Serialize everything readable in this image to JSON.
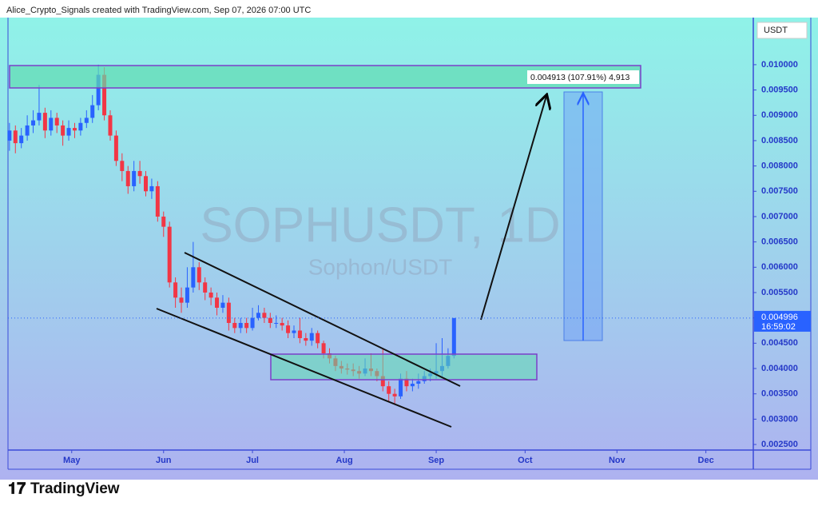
{
  "header": {
    "text": "Alice_Crypto_Signals created with TradingView.com, Sep 07, 2026 07:00 UTC"
  },
  "footer": {
    "logo": "TradingView"
  },
  "chart_data": {
    "type": "candlestick",
    "title": "SOPHUSDT, 1D",
    "subtitle": "Sophon/USDT",
    "currency": "USDT",
    "last_price": 0.004996,
    "countdown": "16:59:02",
    "measure_label": "0.004913 (107.91%) 4,913",
    "up_color": "#2962ff",
    "down_color": "#f23645",
    "x": [
      -21,
      -19,
      -17,
      -15,
      -13,
      -11,
      -9,
      -7,
      -5,
      -3,
      -1,
      1,
      3,
      5,
      7,
      9,
      11,
      13,
      15,
      17,
      19,
      21,
      23,
      25,
      27,
      29,
      31,
      33,
      35,
      37,
      39,
      41,
      43,
      45,
      47,
      49,
      51,
      53,
      55,
      57,
      59,
      61,
      63,
      65,
      67,
      69,
      71,
      73,
      75,
      77,
      79,
      81,
      83,
      85,
      87,
      89,
      91,
      93,
      95,
      97,
      99,
      101,
      103,
      105,
      107,
      109,
      111,
      113,
      115,
      117,
      119,
      121,
      123,
      125,
      127,
      129
    ],
    "open": [
      0.0085,
      0.0087,
      0.00845,
      0.0086,
      0.0088,
      0.0089,
      0.00905,
      0.0087,
      0.00895,
      0.0088,
      0.0086,
      0.00875,
      0.0087,
      0.00885,
      0.00895,
      0.0092,
      0.0098,
      0.009,
      0.0086,
      0.0081,
      0.0079,
      0.0076,
      0.0079,
      0.0078,
      0.0075,
      0.0076,
      0.007,
      0.0068,
      0.0057,
      0.0054,
      0.0053,
      0.0056,
      0.006,
      0.0057,
      0.0055,
      0.0054,
      0.0052,
      0.0053,
      0.0049,
      0.0048,
      0.0049,
      0.0048,
      0.005,
      0.0051,
      0.005,
      0.0049,
      0.0049,
      0.00485,
      0.0047,
      0.00475,
      0.0046,
      0.00455,
      0.0047,
      0.0045,
      0.0043,
      0.0042,
      0.00405,
      0.004,
      0.00398,
      0.00395,
      0.0039,
      0.004,
      0.00395,
      0.00385,
      0.00365,
      0.0035,
      0.00345,
      0.0038,
      0.00365,
      0.0037,
      0.00375,
      0.00385,
      0.0039,
      0.00395,
      0.00405,
      0.00425
    ],
    "high": [
      0.00885,
      0.0088,
      0.00875,
      0.009,
      0.0091,
      0.0096,
      0.00915,
      0.0091,
      0.00905,
      0.0089,
      0.0089,
      0.00885,
      0.00895,
      0.0091,
      0.0094,
      0.01,
      0.00995,
      0.0091,
      0.0087,
      0.00825,
      0.008,
      0.0081,
      0.0081,
      0.0079,
      0.00775,
      0.0077,
      0.0071,
      0.0069,
      0.0058,
      0.0056,
      0.006,
      0.0065,
      0.0061,
      0.0058,
      0.0056,
      0.0055,
      0.00545,
      0.0054,
      0.005,
      0.005,
      0.005,
      0.0052,
      0.00525,
      0.0052,
      0.0051,
      0.00505,
      0.005,
      0.00495,
      0.00485,
      0.005,
      0.0047,
      0.0048,
      0.00475,
      0.00455,
      0.0044,
      0.00425,
      0.00415,
      0.0041,
      0.0041,
      0.00405,
      0.0042,
      0.0043,
      0.004,
      0.0044,
      0.00375,
      0.0036,
      0.0039,
      0.00395,
      0.0038,
      0.0039,
      0.00395,
      0.004,
      0.0045,
      0.0046,
      0.0044,
      0.005
    ],
    "low": [
      0.0083,
      0.00825,
      0.00835,
      0.0085,
      0.00865,
      0.0088,
      0.00855,
      0.0086,
      0.00865,
      0.0084,
      0.0085,
      0.00855,
      0.0086,
      0.00875,
      0.00885,
      0.0091,
      0.0089,
      0.0085,
      0.008,
      0.0077,
      0.00745,
      0.0075,
      0.00765,
      0.0074,
      0.00735,
      0.0069,
      0.0066,
      0.0056,
      0.0052,
      0.0051,
      0.0052,
      0.0055,
      0.00555,
      0.00535,
      0.00525,
      0.00505,
      0.0051,
      0.00475,
      0.0047,
      0.0047,
      0.0047,
      0.00475,
      0.00495,
      0.0049,
      0.0048,
      0.0048,
      0.00475,
      0.0046,
      0.0046,
      0.0045,
      0.00445,
      0.00445,
      0.0044,
      0.0042,
      0.0041,
      0.00395,
      0.0039,
      0.00388,
      0.00385,
      0.0038,
      0.00385,
      0.00385,
      0.00375,
      0.00355,
      0.00335,
      0.0033,
      0.0034,
      0.00355,
      0.00355,
      0.0036,
      0.0037,
      0.00375,
      0.0038,
      0.00385,
      0.004,
      0.0042
    ],
    "close": [
      0.0087,
      0.00845,
      0.0086,
      0.0088,
      0.0089,
      0.00905,
      0.0087,
      0.00895,
      0.0088,
      0.0086,
      0.00875,
      0.0087,
      0.00885,
      0.00895,
      0.0092,
      0.0098,
      0.009,
      0.0086,
      0.0081,
      0.0079,
      0.0076,
      0.0079,
      0.0078,
      0.0075,
      0.0076,
      0.007,
      0.0068,
      0.0057,
      0.0054,
      0.0053,
      0.0056,
      0.006,
      0.0057,
      0.0055,
      0.0054,
      0.0052,
      0.0053,
      0.0049,
      0.0048,
      0.0049,
      0.0048,
      0.005,
      0.0051,
      0.005,
      0.0049,
      0.0049,
      0.00485,
      0.0047,
      0.00475,
      0.0046,
      0.00455,
      0.0047,
      0.0045,
      0.0043,
      0.0042,
      0.00405,
      0.004,
      0.00398,
      0.00395,
      0.0039,
      0.004,
      0.00395,
      0.00385,
      0.00365,
      0.0035,
      0.00345,
      0.0038,
      0.00365,
      0.0037,
      0.00375,
      0.00385,
      0.0039,
      0.00395,
      0.00405,
      0.00425,
      0.004996
    ],
    "xlim": [
      -21.5,
      230
    ],
    "xticks": [
      {
        "value": 0,
        "label": "May"
      },
      {
        "value": 31,
        "label": "Jun"
      },
      {
        "value": 61,
        "label": "Jul"
      },
      {
        "value": 92,
        "label": "Aug"
      },
      {
        "value": 123,
        "label": "Sep"
      },
      {
        "value": 153,
        "label": "Oct"
      },
      {
        "value": 184,
        "label": "Nov"
      },
      {
        "value": 214,
        "label": "Dec"
      }
    ],
    "ylim": [
      0.00239,
      0.01093
    ],
    "yticks": [
      {
        "value": 0.0025,
        "label": "0.002500"
      },
      {
        "value": 0.003,
        "label": "0.003000"
      },
      {
        "value": 0.0035,
        "label": "0.003500"
      },
      {
        "value": 0.004,
        "label": "0.004000"
      },
      {
        "value": 0.0045,
        "label": "0.004500"
      },
      {
        "value": 0.005,
        "label": "0.005000"
      },
      {
        "value": 0.0055,
        "label": "0.005500"
      },
      {
        "value": 0.006,
        "label": "0.006000"
      },
      {
        "value": 0.0065,
        "label": "0.006500"
      },
      {
        "value": 0.007,
        "label": "0.007000"
      },
      {
        "value": 0.0075,
        "label": "0.007500"
      },
      {
        "value": 0.008,
        "label": "0.008000"
      },
      {
        "value": 0.0085,
        "label": "0.008500"
      },
      {
        "value": 0.009,
        "label": "0.009000"
      },
      {
        "value": 0.0095,
        "label": "0.009500"
      },
      {
        "value": 0.01,
        "label": "0.010000"
      }
    ]
  }
}
